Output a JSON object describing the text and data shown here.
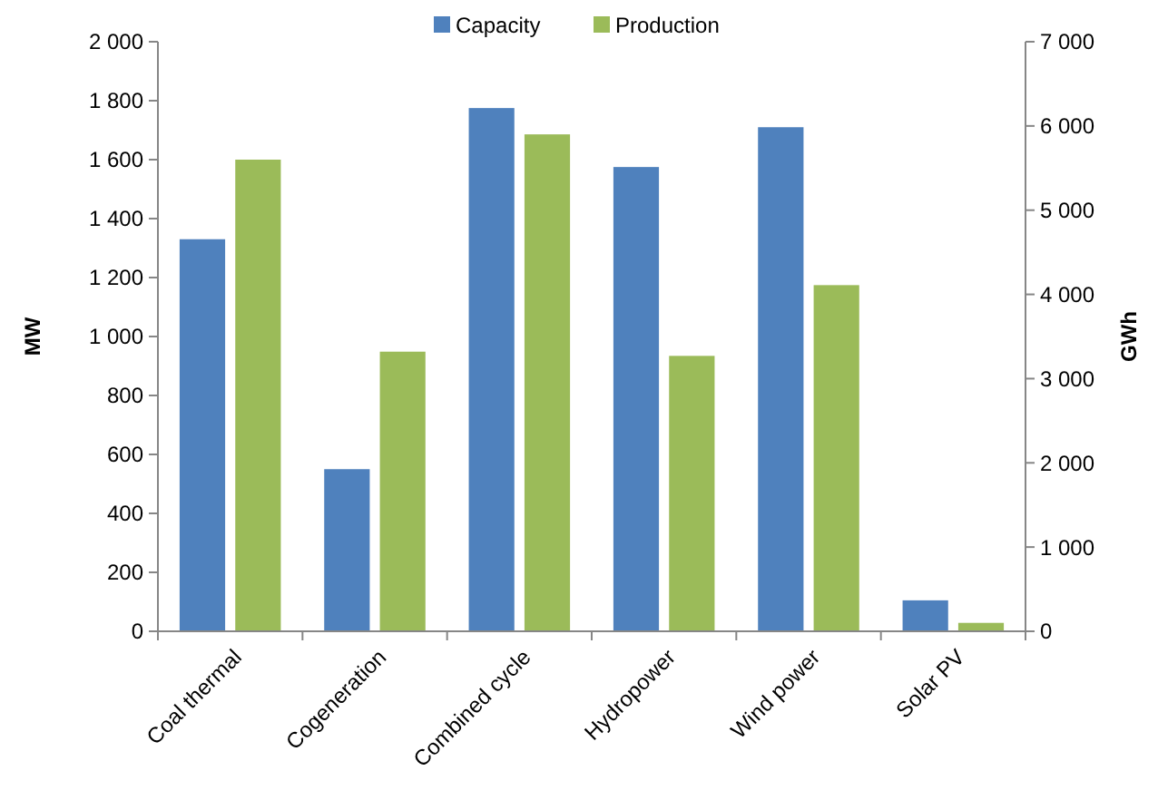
{
  "chart_data": {
    "type": "bar",
    "categories": [
      "Coal thermal",
      "Cogeneration",
      "Combined cycle",
      "Hydropower",
      "Wind power",
      "Solar PV"
    ],
    "series": [
      {
        "name": "Capacity",
        "color": "#4f81bd",
        "values": [
          1330,
          550,
          1775,
          1575,
          1710,
          105
        ]
      },
      {
        "name": "Production",
        "color": "#9bbb59",
        "axis": "y2",
        "values": [
          5600,
          3320,
          5900,
          3270,
          4110,
          100
        ]
      }
    ],
    "ylabel": "MW",
    "y2label": "GWh",
    "ylim": [
      0,
      2000
    ],
    "yticks": [
      0,
      {
        "value": 200,
        "label": "200"
      },
      {
        "value": 400,
        "label": "400"
      },
      {
        "value": 600,
        "label": "600"
      },
      {
        "value": 800,
        "label": "800"
      },
      {
        "value": 1000,
        "label": "1 000"
      },
      {
        "value": 1200,
        "label": "1 200"
      },
      {
        "value": 1400,
        "label": "1 400"
      },
      {
        "value": 1600,
        "label": "1 600"
      },
      {
        "value": 1800,
        "label": "1 800"
      },
      {
        "value": 2000,
        "label": "2 000"
      }
    ],
    "y2lim": [
      0,
      7000
    ],
    "y2ticks": [
      0,
      {
        "value": 1000,
        "label": "1 000"
      },
      {
        "value": 2000,
        "label": "2 000"
      },
      {
        "value": 3000,
        "label": "3 000"
      },
      {
        "value": 4000,
        "label": "4 000"
      },
      {
        "value": 5000,
        "label": "5 000"
      },
      {
        "value": 6000,
        "label": "6 000"
      },
      {
        "value": 7000,
        "label": "7 000"
      }
    ],
    "legend": "top",
    "grid": false
  }
}
